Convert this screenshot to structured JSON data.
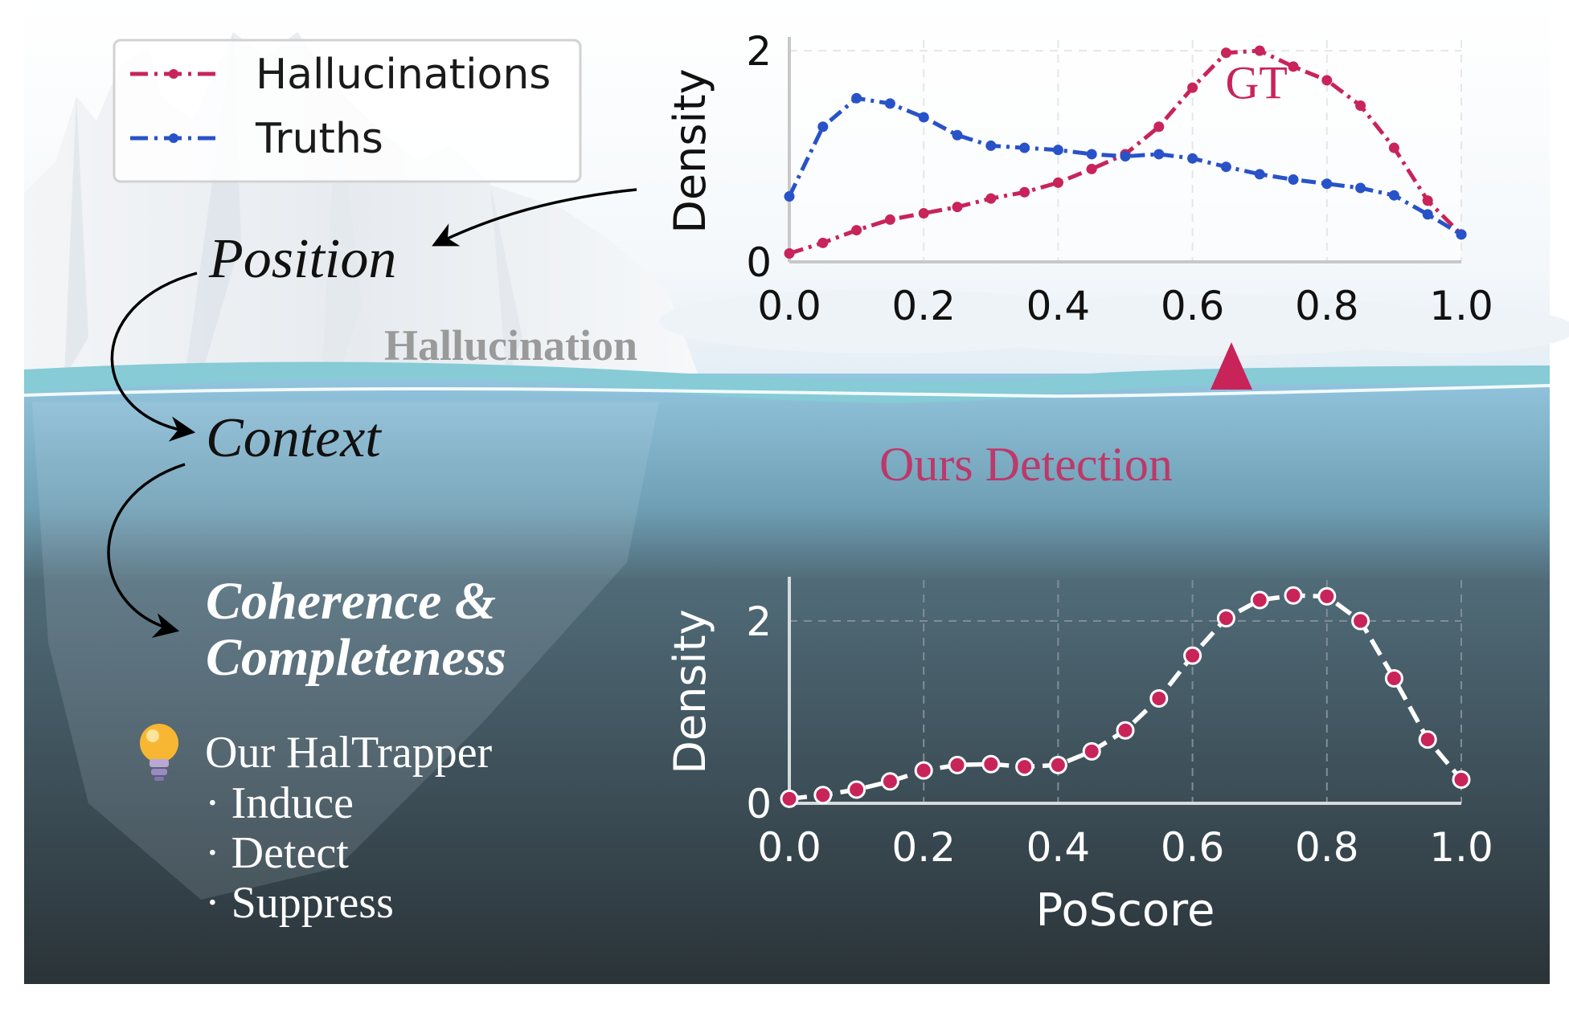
{
  "legend": {
    "items": [
      {
        "label": "Hallucinations",
        "color": "#C8245A"
      },
      {
        "label": "Truths",
        "color": "#2852C8"
      }
    ]
  },
  "concepts": {
    "position": "Position",
    "context": "Context",
    "coherence_line1": "Coherence &",
    "coherence_line2": "Completeness",
    "tip_icon": "lightbulb-icon",
    "method_title": "Our HalTrapper",
    "steps": [
      "· Induce",
      "· Detect",
      "· Suppress"
    ]
  },
  "scene": {
    "iceberg_label": "Hallucination",
    "detection_label": "Ours Detection",
    "gt_label": "GT",
    "colors": {
      "sky": "#ffffff",
      "sea_surface": "#86CBD6",
      "deep_water": "#2C3A40",
      "arrow": "#C8245A"
    }
  },
  "chart_data": [
    {
      "type": "line",
      "title": "",
      "xlabel": "",
      "ylabel": "Density",
      "xlim": [
        0,
        1
      ],
      "ylim": [
        0,
        2.1
      ],
      "xticks": [
        "0.0",
        "0.2",
        "0.4",
        "0.6",
        "0.8",
        "1.0"
      ],
      "yticks": [
        "0",
        "2"
      ],
      "grid": true,
      "annotation": "GT",
      "legend_position": "top-left",
      "x": [
        0.0,
        0.05,
        0.1,
        0.15,
        0.2,
        0.25,
        0.3,
        0.35,
        0.4,
        0.45,
        0.5,
        0.55,
        0.6,
        0.65,
        0.7,
        0.75,
        0.8,
        0.85,
        0.9,
        0.95,
        1.0
      ],
      "series": [
        {
          "name": "Hallucinations",
          "color": "#C8245A",
          "values": [
            0.08,
            0.18,
            0.3,
            0.4,
            0.46,
            0.52,
            0.6,
            0.66,
            0.75,
            0.88,
            1.02,
            1.28,
            1.65,
            1.98,
            2.0,
            1.85,
            1.72,
            1.48,
            1.08,
            0.58,
            0.26
          ]
        },
        {
          "name": "Truths",
          "color": "#2852C8",
          "values": [
            0.62,
            1.28,
            1.55,
            1.5,
            1.37,
            1.2,
            1.1,
            1.08,
            1.06,
            1.02,
            1.0,
            1.02,
            0.98,
            0.9,
            0.83,
            0.78,
            0.74,
            0.7,
            0.63,
            0.45,
            0.26
          ]
        }
      ]
    },
    {
      "type": "line",
      "title": "",
      "xlabel": "PoScore",
      "ylabel": "Density",
      "xlim": [
        0,
        1
      ],
      "ylim": [
        0,
        2.45
      ],
      "xticks": [
        "0.0",
        "0.2",
        "0.4",
        "0.6",
        "0.8",
        "1.0"
      ],
      "yticks": [
        "0",
        "2"
      ],
      "grid": true,
      "x": [
        0.0,
        0.05,
        0.1,
        0.15,
        0.2,
        0.25,
        0.3,
        0.35,
        0.4,
        0.45,
        0.5,
        0.55,
        0.6,
        0.65,
        0.7,
        0.75,
        0.8,
        0.85,
        0.9,
        0.95,
        1.0
      ],
      "series": [
        {
          "name": "Ours Detection",
          "color": "#C8245A",
          "values": [
            0.05,
            0.09,
            0.15,
            0.24,
            0.36,
            0.42,
            0.43,
            0.4,
            0.42,
            0.57,
            0.8,
            1.15,
            1.62,
            2.03,
            2.23,
            2.28,
            2.27,
            2.0,
            1.37,
            0.7,
            0.26
          ]
        }
      ]
    }
  ]
}
